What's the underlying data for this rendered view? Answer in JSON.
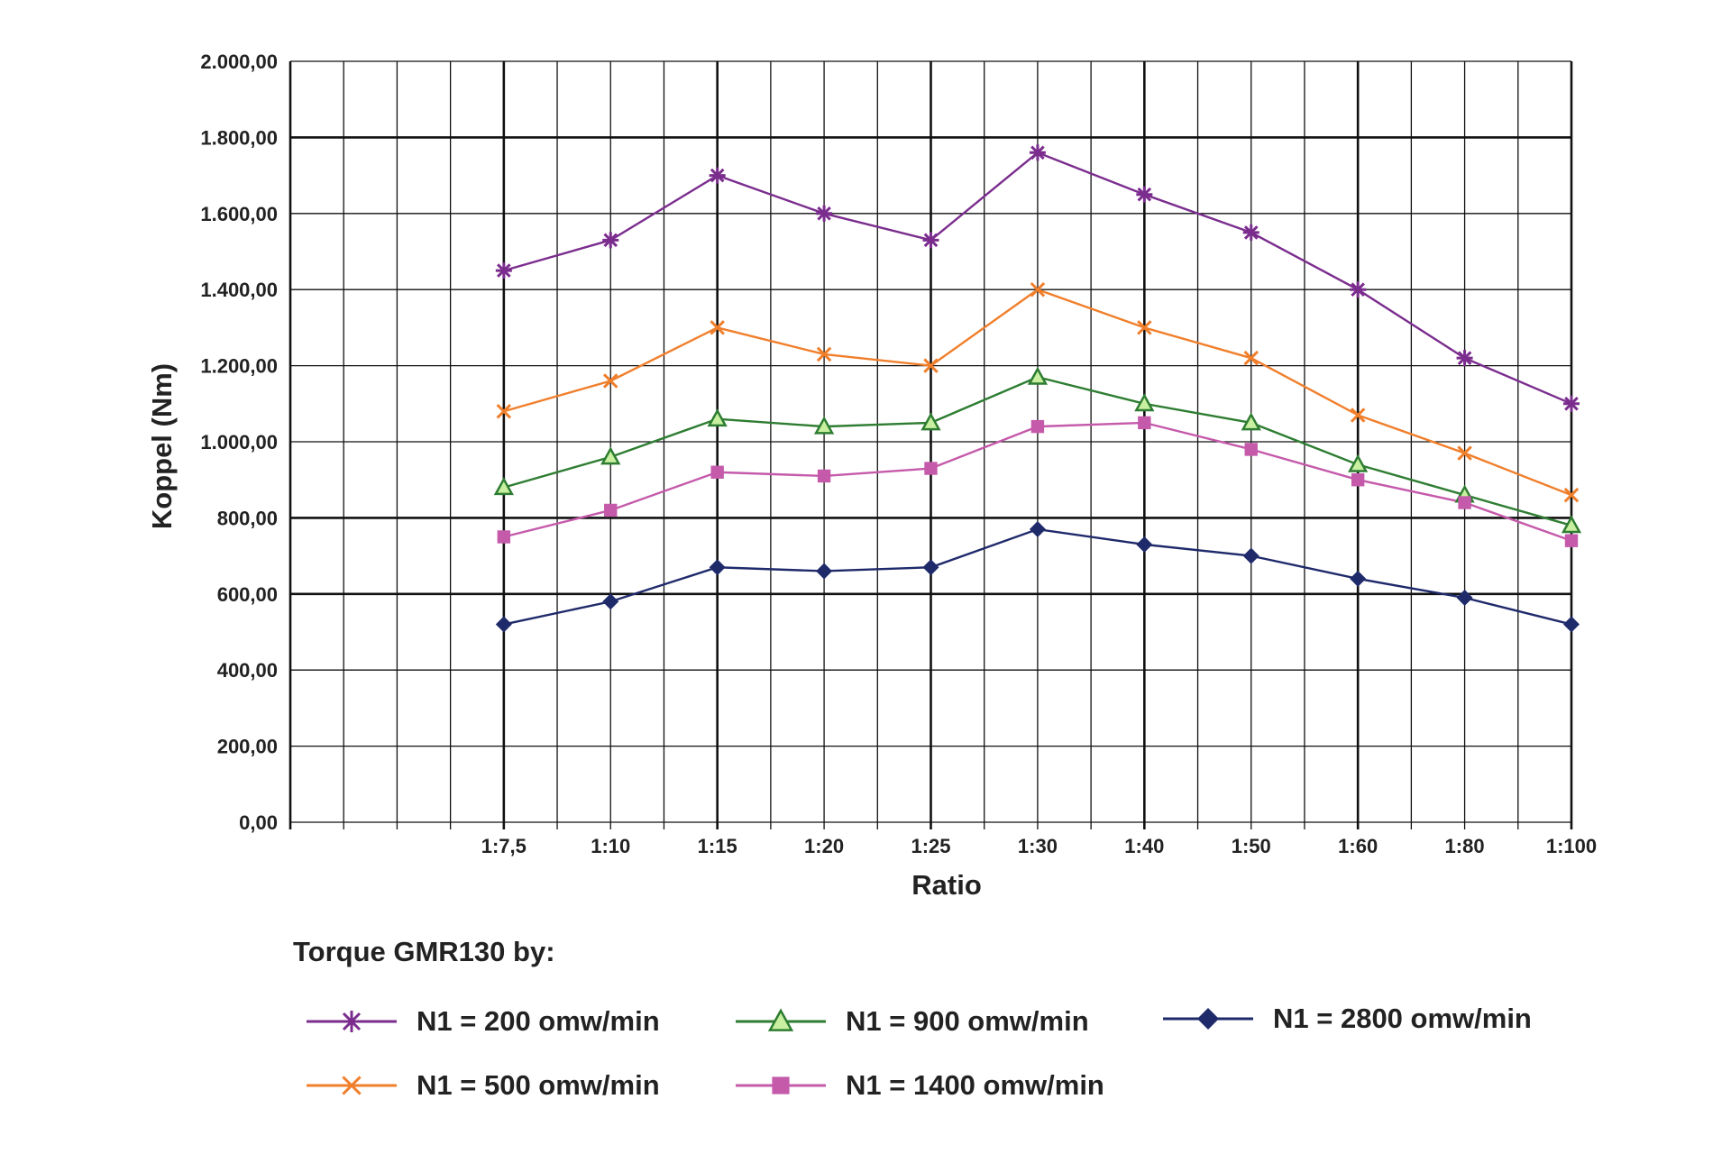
{
  "chart_data": {
    "type": "line",
    "xlabel": "Ratio",
    "ylabel": "Koppel (Nm)",
    "ylim": [
      0,
      2000
    ],
    "y_ticks": [
      "0,00",
      "200,00",
      "400,00",
      "600,00",
      "800,00",
      "1.000,00",
      "1.200,00",
      "1.400,00",
      "1.600,00",
      "1.800,00",
      "2.000,00"
    ],
    "categories": [
      "1:7,5",
      "1:10",
      "1:15",
      "1:20",
      "1:25",
      "1:30",
      "1:40",
      "1:50",
      "1:60",
      "1:80",
      "1:100"
    ],
    "grid": true,
    "legend_title": "Torque GMR130 by:",
    "legend_position": "bottom",
    "series": [
      {
        "name": "N1 = 200 omw/min",
        "color": "#7b2d8e",
        "marker": "asterisk",
        "values": [
          1450,
          1530,
          1700,
          1600,
          1530,
          1760,
          1650,
          1550,
          1400,
          1220,
          1100
        ]
      },
      {
        "name": "N1 = 500 omw/min",
        "color": "#f07f2c",
        "marker": "x",
        "values": [
          1080,
          1160,
          1300,
          1230,
          1200,
          1400,
          1300,
          1220,
          1070,
          970,
          860
        ]
      },
      {
        "name": "N1 = 900 omw/min",
        "color": "#2e7d32",
        "marker": "triangle",
        "values": [
          880,
          960,
          1060,
          1040,
          1050,
          1170,
          1100,
          1050,
          940,
          860,
          780
        ]
      },
      {
        "name": "N1 = 1400 omw/min",
        "color": "#c55aab",
        "marker": "square",
        "values": [
          750,
          820,
          920,
          910,
          930,
          1040,
          1050,
          980,
          900,
          840,
          740
        ]
      },
      {
        "name": "N1 = 2800 omw/min",
        "color": "#1f2a6b",
        "marker": "diamond",
        "values": [
          520,
          580,
          670,
          660,
          670,
          770,
          730,
          700,
          640,
          590,
          520
        ]
      }
    ]
  }
}
